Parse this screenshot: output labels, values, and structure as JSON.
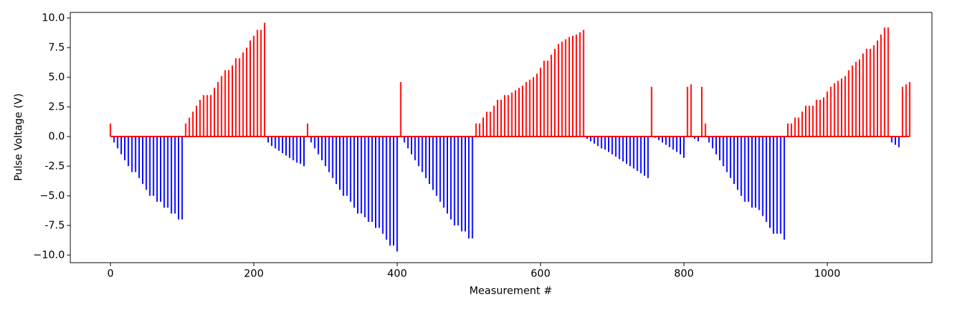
{
  "chart_data": {
    "type": "stem",
    "xlabel": "Measurement #",
    "ylabel": "Pulse Voltage (V)",
    "xlim": [
      -56,
      1146
    ],
    "ylim": [
      -10.64,
      10.47
    ],
    "xticks": [
      0,
      200,
      400,
      600,
      800,
      1000
    ],
    "yticks": [
      {
        "value": 10,
        "label": "10.0"
      },
      7.5,
      {
        "value": 5,
        "label": "5.0"
      },
      2.5,
      {
        "value": 0,
        "label": "0.0"
      },
      -2.5,
      {
        "value": -5,
        "label": "−5.0"
      },
      -7.5,
      {
        "value": -10,
        "label": "−10.0"
      }
    ],
    "positive_color": "#ff0000",
    "negative_color": "#0000ff",
    "baseline_color": "#ff0000",
    "x": [
      0,
      5,
      10,
      15,
      20,
      25,
      30,
      35,
      40,
      45,
      50,
      55,
      60,
      65,
      70,
      75,
      80,
      85,
      90,
      95,
      100,
      105,
      110,
      115,
      120,
      125,
      130,
      135,
      140,
      145,
      150,
      155,
      160,
      165,
      170,
      175,
      180,
      185,
      190,
      195,
      200,
      205,
      210,
      215,
      220,
      225,
      230,
      235,
      240,
      245,
      250,
      255,
      260,
      265,
      270,
      275,
      280,
      285,
      290,
      295,
      300,
      305,
      310,
      315,
      320,
      325,
      330,
      335,
      340,
      345,
      350,
      355,
      360,
      365,
      370,
      375,
      380,
      385,
      390,
      395,
      400,
      405,
      410,
      415,
      420,
      425,
      430,
      435,
      440,
      445,
      450,
      455,
      460,
      465,
      470,
      475,
      480,
      485,
      490,
      495,
      500,
      505,
      510,
      515,
      520,
      525,
      530,
      535,
      540,
      545,
      550,
      555,
      560,
      565,
      570,
      575,
      580,
      585,
      590,
      595,
      600,
      605,
      610,
      615,
      620,
      625,
      630,
      635,
      640,
      645,
      650,
      655,
      660,
      665,
      670,
      675,
      680,
      685,
      690,
      695,
      700,
      705,
      710,
      715,
      720,
      725,
      730,
      735,
      740,
      745,
      750,
      755,
      760,
      765,
      770,
      775,
      780,
      785,
      790,
      795,
      800,
      805,
      810,
      815,
      820,
      825,
      830,
      835,
      840,
      845,
      850,
      855,
      860,
      865,
      870,
      875,
      880,
      885,
      890,
      895,
      900,
      905,
      910,
      915,
      920,
      925,
      930,
      935,
      940,
      945,
      950,
      955,
      960,
      965,
      970,
      975,
      980,
      985,
      990,
      995,
      1000,
      1005,
      1010,
      1015,
      1020,
      1025,
      1030,
      1035,
      1040,
      1045,
      1050,
      1055,
      1060,
      1065,
      1070,
      1075,
      1080,
      1085,
      1090,
      1095,
      1100,
      1105,
      1110,
      1115
    ],
    "values": [
      1.1,
      -0.5,
      -1,
      -1.5,
      -2,
      -2.5,
      -3,
      -3,
      -3.5,
      -4,
      -4.5,
      -5,
      -5,
      -5.5,
      -5.5,
      -6,
      -6,
      -6.5,
      -6.5,
      -7,
      -7,
      1.1,
      1.6,
      2.1,
      2.6,
      3.1,
      3.5,
      3.5,
      3.5,
      4.1,
      4.6,
      5.1,
      5.6,
      5.6,
      6,
      6.6,
      6.6,
      7.1,
      7.5,
      8.1,
      8.5,
      9,
      9,
      9.6,
      -0.5,
      -0.8,
      -1,
      -1.2,
      -1.4,
      -1.6,
      -1.8,
      -2,
      -2.2,
      -2.3,
      -2.5,
      1.1,
      -0.5,
      -1,
      -1.5,
      -2,
      -2.5,
      -3,
      -3.5,
      -4,
      -4.5,
      -5,
      -5,
      -5.5,
      -6,
      -6.5,
      -6.5,
      -6.8,
      -7.2,
      -7.2,
      -7.7,
      -7.7,
      -8.2,
      -8.7,
      -9.2,
      -9.2,
      -9.7,
      4.6,
      -0.5,
      -1,
      -1.5,
      -2,
      -2.5,
      -3,
      -3.5,
      -4,
      -4.5,
      -5,
      -5.5,
      -6,
      -6.5,
      -7,
      -7.5,
      -7.5,
      -8,
      -8,
      -8.6,
      -8.6,
      1.1,
      1.1,
      1.6,
      2.1,
      2.1,
      2.6,
      3.1,
      3.1,
      3.5,
      3.5,
      3.7,
      3.9,
      4.1,
      4.3,
      4.6,
      4.8,
      5,
      5.3,
      5.8,
      6.4,
      6.4,
      6.9,
      7.4,
      7.8,
      8,
      8.2,
      8.4,
      8.5,
      8.6,
      8.8,
      9,
      -0.2,
      -0.4,
      -0.6,
      -0.8,
      -1,
      -1.1,
      -1.3,
      -1.5,
      -1.7,
      -1.9,
      -2.1,
      -2.3,
      -2.5,
      -2.7,
      -2.9,
      -3.1,
      -3.3,
      -3.5,
      4.2,
      -0.1,
      -0.3,
      -0.5,
      -0.7,
      -0.9,
      -1.1,
      -1.3,
      -1.5,
      -1.8,
      4.2,
      4.4,
      -0.2,
      -0.4,
      4.2,
      1.1,
      -0.5,
      -1,
      -1.5,
      -2,
      -2.5,
      -3,
      -3.5,
      -4,
      -4.5,
      -5,
      -5.5,
      -5.5,
      -6,
      -6,
      -6.2,
      -6.7,
      -7.2,
      -7.7,
      -8.2,
      -8.2,
      -8.2,
      -8.7,
      1.1,
      1.1,
      1.6,
      1.6,
      2.1,
      2.6,
      2.6,
      2.6,
      3.1,
      3.1,
      3.3,
      3.8,
      4.2,
      4.5,
      4.7,
      4.9,
      5.1,
      5.6,
      6,
      6.3,
      6.5,
      7,
      7.4,
      7.4,
      7.7,
      8.1,
      8.6,
      9.2,
      9.2,
      -0.5,
      -0.7,
      -0.9,
      4.2,
      4.4,
      4.6
    ]
  }
}
